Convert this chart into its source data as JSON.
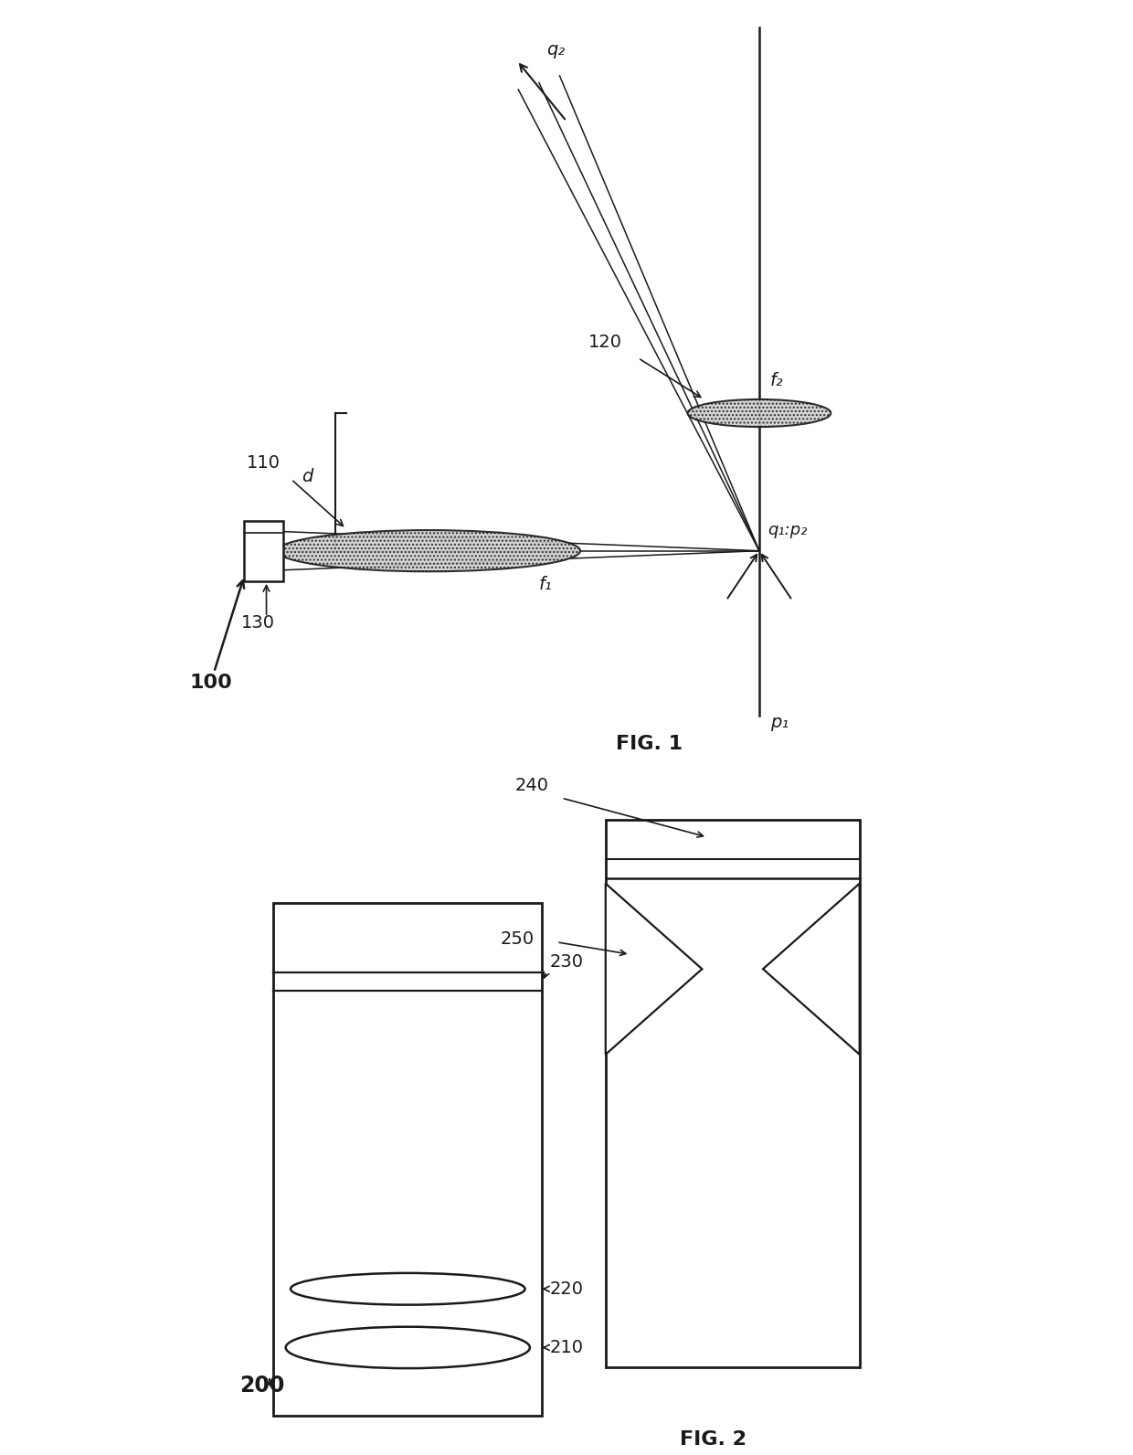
{
  "fig1": {
    "title": "FIG. 1",
    "label_100": "100",
    "label_110": "110",
    "label_120": "120",
    "label_130": "130",
    "label_p1": "p₁",
    "label_q1p2": "q₁:p₂",
    "label_q2": "q₂",
    "label_f1": "f₁",
    "label_f2": "f₂",
    "label_d": "d"
  },
  "fig2": {
    "title": "FIG. 2",
    "label_200": "200",
    "label_210": "210",
    "label_220": "220",
    "label_230": "230",
    "label_240": "240",
    "label_250": "250"
  },
  "bg_color": "#ffffff",
  "line_color": "#1a1a1a"
}
